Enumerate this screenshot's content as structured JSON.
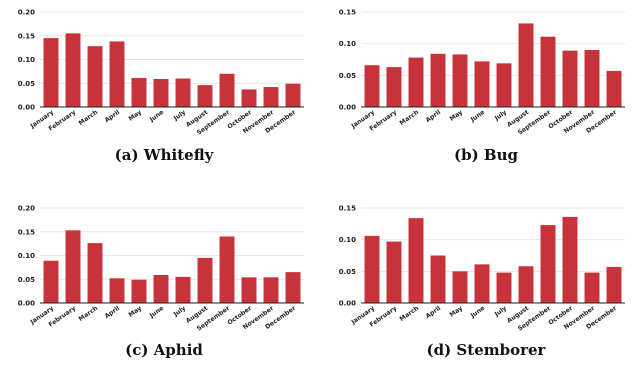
{
  "chart_data": [
    {
      "type": "bar",
      "caption": "(a) Whitefly",
      "categories": [
        "January",
        "February",
        "March",
        "April",
        "May",
        "June",
        "July",
        "August",
        "September",
        "October",
        "November",
        "December"
      ],
      "values": [
        0.145,
        0.155,
        0.128,
        0.138,
        0.061,
        0.059,
        0.06,
        0.046,
        0.07,
        0.037,
        0.042,
        0.049
      ],
      "ylim": [
        0,
        0.2
      ],
      "yticks": [
        "0.00",
        "0.05",
        "0.10",
        "0.15",
        "0.20"
      ],
      "grid": true
    },
    {
      "type": "bar",
      "caption": "(b) Bug",
      "categories": [
        "January",
        "February",
        "March",
        "April",
        "May",
        "June",
        "July",
        "August",
        "September",
        "October",
        "November",
        "December"
      ],
      "values": [
        0.066,
        0.063,
        0.078,
        0.084,
        0.083,
        0.072,
        0.069,
        0.132,
        0.111,
        0.089,
        0.09,
        0.057
      ],
      "ylim": [
        0,
        0.15
      ],
      "yticks": [
        "0.00",
        "0.05",
        "0.10",
        "0.15"
      ],
      "grid": true
    },
    {
      "type": "bar",
      "caption": "(c) Aphid",
      "categories": [
        "January",
        "February",
        "March",
        "April",
        "May",
        "June",
        "July",
        "August",
        "September",
        "October",
        "November",
        "December"
      ],
      "values": [
        0.089,
        0.153,
        0.126,
        0.052,
        0.049,
        0.059,
        0.055,
        0.095,
        0.14,
        0.054,
        0.054,
        0.065
      ],
      "ylim": [
        0,
        0.2
      ],
      "yticks": [
        "0.00",
        "0.05",
        "0.10",
        "0.15",
        "0.20"
      ],
      "grid": true
    },
    {
      "type": "bar",
      "caption": "(d) Stemborer",
      "categories": [
        "January",
        "February",
        "March",
        "April",
        "May",
        "June",
        "July",
        "August",
        "September",
        "October",
        "November",
        "December"
      ],
      "values": [
        0.106,
        0.097,
        0.134,
        0.075,
        0.05,
        0.061,
        0.048,
        0.058,
        0.123,
        0.136,
        0.048,
        0.057
      ],
      "ylim": [
        0,
        0.15
      ],
      "yticks": [
        "0.00",
        "0.05",
        "0.10",
        "0.15"
      ],
      "grid": true
    }
  ],
  "colors": {
    "bar": "#c8323a",
    "grid": "#e6e6e6",
    "axis": "#222222"
  }
}
